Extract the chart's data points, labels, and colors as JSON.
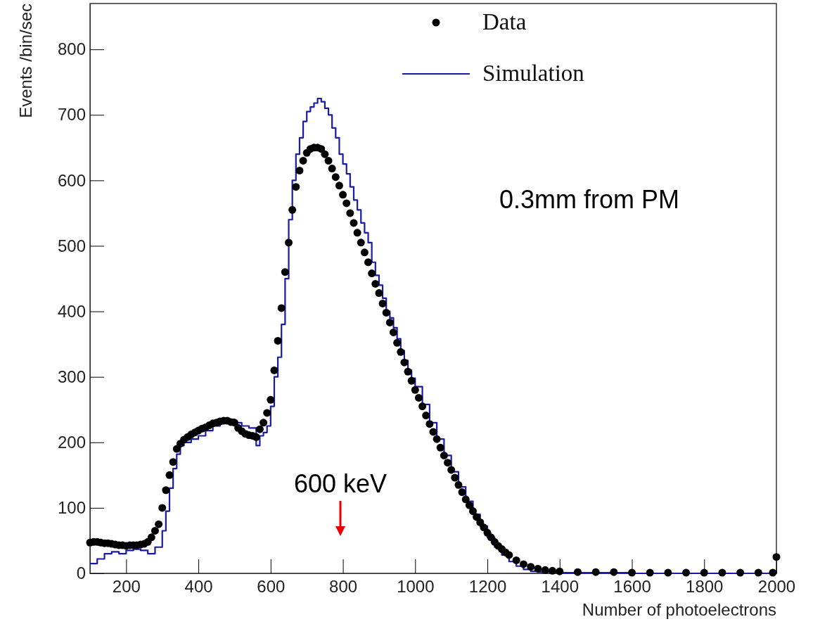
{
  "chart_data": {
    "type": "scatter",
    "xlabel": "Number of photoelectrons",
    "ylabel": "Events /bin/sec",
    "xlim": [
      100,
      2000
    ],
    "xticks": [
      200,
      400,
      600,
      800,
      1000,
      1200,
      1400,
      1600,
      1800,
      2000
    ],
    "ylim": [
      0,
      870
    ],
    "yticks": [
      0,
      100,
      200,
      300,
      400,
      500,
      600,
      700,
      800
    ],
    "grid": false,
    "legend": "top",
    "annotations": [
      "0.3mm from PM",
      "600 keV"
    ],
    "series": [
      {
        "name": "Data",
        "marker": "circle",
        "color": "#000000",
        "x": [
          100,
          110,
          120,
          130,
          140,
          150,
          160,
          170,
          180,
          190,
          200,
          210,
          220,
          230,
          240,
          250,
          260,
          270,
          280,
          290,
          300,
          310,
          320,
          330,
          340,
          350,
          360,
          370,
          380,
          390,
          400,
          410,
          420,
          430,
          440,
          450,
          460,
          470,
          480,
          490,
          500,
          510,
          520,
          530,
          540,
          550,
          560,
          570,
          580,
          590,
          600,
          610,
          620,
          630,
          640,
          650,
          660,
          670,
          680,
          690,
          700,
          710,
          720,
          730,
          740,
          750,
          760,
          770,
          780,
          790,
          800,
          810,
          820,
          830,
          840,
          850,
          860,
          870,
          880,
          890,
          900,
          910,
          920,
          930,
          940,
          950,
          960,
          970,
          980,
          990,
          1000,
          1010,
          1020,
          1030,
          1040,
          1050,
          1060,
          1070,
          1080,
          1090,
          1100,
          1110,
          1120,
          1130,
          1140,
          1150,
          1160,
          1170,
          1180,
          1190,
          1200,
          1210,
          1220,
          1230,
          1240,
          1250,
          1260,
          1280,
          1300,
          1320,
          1340,
          1360,
          1380,
          1400,
          1450,
          1500,
          1550,
          1600,
          1650,
          1700,
          1750,
          1800,
          1850,
          1900,
          1950,
          1990,
          2000
        ],
        "values": [
          47,
          48,
          48,
          47,
          46,
          46,
          45,
          44,
          43,
          43,
          42,
          43,
          43,
          43,
          44,
          45,
          48,
          55,
          65,
          75,
          100,
          127,
          150,
          170,
          190,
          198,
          204,
          208,
          212,
          215,
          218,
          221,
          223,
          226,
          229,
          230,
          232,
          233,
          233,
          231,
          230,
          222,
          217,
          213,
          211,
          210,
          208,
          220,
          230,
          245,
          265,
          310,
          355,
          405,
          460,
          505,
          555,
          590,
          615,
          630,
          642,
          648,
          650,
          650,
          648,
          640,
          630,
          618,
          605,
          592,
          578,
          565,
          550,
          535,
          520,
          505,
          490,
          475,
          458,
          442,
          428,
          412,
          398,
          383,
          368,
          352,
          338,
          322,
          308,
          294,
          280,
          268,
          255,
          241,
          228,
          216,
          205,
          192,
          180,
          169,
          158,
          146,
          135,
          124,
          113,
          104,
          95,
          86,
          78,
          70,
          62,
          55,
          48,
          42,
          37,
          32,
          28,
          20,
          14,
          10,
          7,
          5,
          4,
          3,
          2,
          2,
          2,
          1,
          1,
          1,
          1,
          1,
          1,
          1,
          1,
          1,
          25
        ]
      },
      {
        "name": "Simulation",
        "type": "step",
        "color": "#1a1aa8",
        "x": [
          100,
          120,
          140,
          160,
          180,
          200,
          220,
          240,
          260,
          280,
          300,
          310,
          320,
          330,
          340,
          350,
          360,
          380,
          400,
          420,
          440,
          460,
          480,
          500,
          520,
          540,
          560,
          570,
          580,
          590,
          600,
          610,
          620,
          630,
          640,
          650,
          660,
          670,
          680,
          690,
          700,
          710,
          720,
          730,
          740,
          750,
          760,
          770,
          780,
          790,
          800,
          810,
          820,
          830,
          840,
          850,
          860,
          870,
          880,
          890,
          900,
          910,
          920,
          930,
          940,
          950,
          960,
          970,
          980,
          990,
          1000,
          1020,
          1040,
          1060,
          1080,
          1100,
          1120,
          1140,
          1160,
          1180,
          1200,
          1220,
          1240,
          1260,
          1280,
          1300,
          1320,
          1340,
          1400,
          1600,
          2000
        ],
        "values": [
          15,
          22,
          30,
          33,
          30,
          35,
          37,
          35,
          30,
          40,
          65,
          95,
          130,
          160,
          182,
          195,
          200,
          205,
          210,
          218,
          225,
          232,
          235,
          230,
          225,
          222,
          195,
          210,
          215,
          225,
          255,
          300,
          330,
          380,
          450,
          540,
          600,
          640,
          665,
          690,
          705,
          712,
          718,
          725,
          720,
          710,
          700,
          680,
          665,
          640,
          625,
          610,
          590,
          570,
          555,
          535,
          520,
          505,
          475,
          455,
          440,
          420,
          400,
          390,
          375,
          358,
          340,
          325,
          310,
          298,
          285,
          258,
          230,
          205,
          180,
          155,
          132,
          110,
          90,
          72,
          55,
          40,
          28,
          18,
          11,
          6,
          3,
          2,
          1,
          0,
          0
        ]
      }
    ]
  }
}
